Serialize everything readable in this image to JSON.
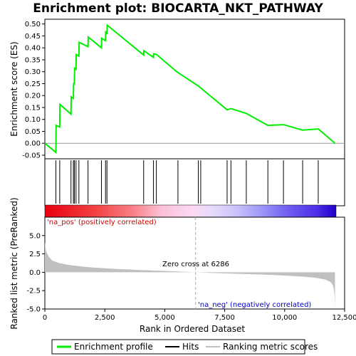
{
  "chart_data": {
    "type": "line",
    "title": "Enrichment plot: BIOCARTA_NKT_PATHWAY",
    "xlabel": "Rank in Ordered Dataset",
    "xlim": [
      0,
      12500
    ],
    "x_ticks": [
      0,
      2500,
      5000,
      7500,
      10000,
      12500
    ],
    "x_tick_labels": [
      "0",
      "2,500",
      "5,000",
      "7,500",
      "10,000",
      "12,500"
    ],
    "es_panel": {
      "ylabel": "Enrichment score (ES)",
      "ylim": [
        -0.065,
        0.52
      ],
      "y_ticks": [
        -0.05,
        0.0,
        0.05,
        0.1,
        0.15,
        0.2,
        0.25,
        0.3,
        0.35,
        0.4,
        0.45,
        0.5
      ],
      "y_tick_labels": [
        "-0.05",
        "0.00",
        "0.05",
        "0.10",
        "0.15",
        "0.20",
        "0.25",
        "0.30",
        "0.35",
        "0.40",
        "0.45",
        "0.50"
      ],
      "series": [
        {
          "name": "Enrichment profile",
          "color": "#00ee00",
          "x": [
            0,
            460,
            470,
            620,
            630,
            1090,
            1100,
            1190,
            1200,
            1230,
            1240,
            1300,
            1310,
            1420,
            1430,
            1800,
            1810,
            2360,
            2370,
            2530,
            2540,
            2590,
            2600,
            4120,
            4130,
            4530,
            4540,
            4650,
            5500,
            6400,
            7600,
            7760,
            8400,
            9300,
            9950,
            10750,
            11400,
            12100
          ],
          "y": [
            0.0,
            -0.038,
            0.075,
            0.068,
            0.163,
            0.122,
            0.195,
            0.188,
            0.25,
            0.25,
            0.315,
            0.31,
            0.372,
            0.365,
            0.423,
            0.405,
            0.445,
            0.4,
            0.44,
            0.43,
            0.47,
            0.458,
            0.495,
            0.37,
            0.388,
            0.36,
            0.375,
            0.373,
            0.3,
            0.24,
            0.14,
            0.145,
            0.125,
            0.075,
            0.078,
            0.055,
            0.06,
            0.0
          ]
        }
      ]
    },
    "hits_panel": {
      "legend_label": "Hits",
      "hit_positions": [
        460,
        620,
        1090,
        1190,
        1230,
        1300,
        1420,
        1800,
        2360,
        2530,
        2590,
        4120,
        4530,
        4650,
        5550,
        6400,
        6500,
        7600,
        7760,
        8400,
        9300,
        9950,
        10750,
        11400
      ]
    },
    "rank_panel": {
      "ylabel": "Ranked list metric (PreRanked)",
      "legend_label": "Ranking metric scores",
      "ylim": [
        -5.0,
        7.5
      ],
      "y_ticks": [
        -5.0,
        -2.5,
        0.0,
        2.5,
        5.0
      ],
      "y_tick_labels": [
        "-5.0",
        "-2.5",
        "0.0",
        "2.5",
        "5.0"
      ],
      "fill_color": "#c0c0c0",
      "x": [
        0,
        50,
        150,
        300,
        600,
        1000,
        1500,
        2000,
        3000,
        4000,
        5000,
        6286,
        7000,
        8000,
        9000,
        10000,
        10800,
        11300,
        11700,
        11900,
        12000,
        12050,
        12080,
        12100
      ],
      "values": [
        4.1,
        2.9,
        2.2,
        1.6,
        1.25,
        1.0,
        0.8,
        0.65,
        0.45,
        0.3,
        0.18,
        0.0,
        -0.1,
        -0.2,
        -0.3,
        -0.45,
        -0.6,
        -0.75,
        -1.0,
        -1.3,
        -1.7,
        -2.2,
        -3.2,
        -4.6
      ],
      "zero_cross_label": "Zero cross at 6286",
      "zero_cross_x": 6286,
      "pos_label": "'na_pos' (positively correlated)",
      "neg_label": "'na_neg' (negatively correlated)",
      "pos_color": "#cc0000",
      "neg_color": "#0000cc"
    },
    "legend": {
      "items": [
        "Enrichment profile",
        "Hits",
        "Ranking metric scores"
      ],
      "placement": "bottom"
    }
  }
}
